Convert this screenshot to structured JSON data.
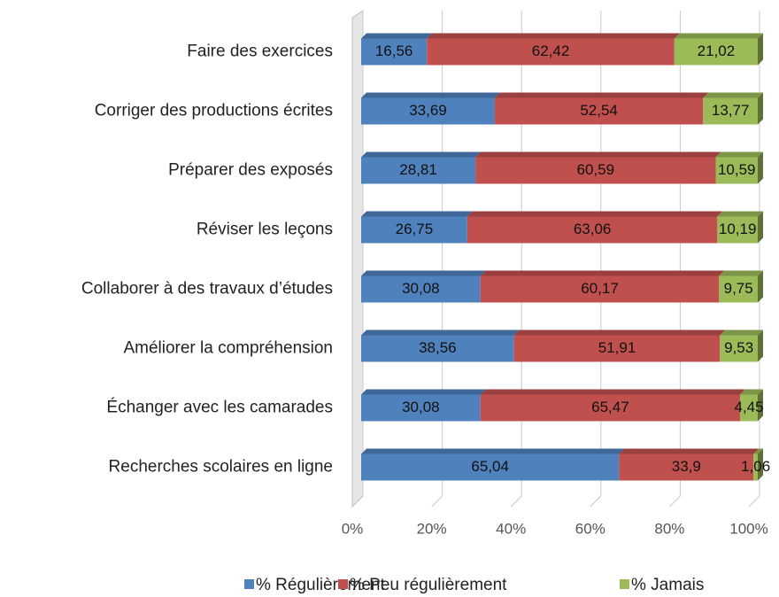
{
  "chart_data": {
    "type": "stacked-bar-horizontal",
    "categories": [
      "Faire des exercices",
      "Corriger des productions écrites",
      "Préparer des exposés",
      "Réviser les leçons ",
      "Collaborer à des travaux d’études",
      "Améliorer la compréhension ",
      "Échanger avec les camarades ",
      "Recherches scolaires en ligne"
    ],
    "series": [
      {
        "name": "% Régulièrement",
        "color": "#4f81bd",
        "values": [
          16.56,
          33.69,
          28.81,
          26.75,
          30.08,
          38.56,
          30.08,
          65.04
        ],
        "value_labels": [
          "16,56",
          "33,69",
          "28,81",
          "26,75",
          "30,08",
          "38,56",
          "30,08",
          "65,04"
        ]
      },
      {
        "name": "% Peu régulièrement",
        "color": "#c0504d",
        "values": [
          62.42,
          52.54,
          60.59,
          63.06,
          60.17,
          51.91,
          65.47,
          33.9
        ],
        "value_labels": [
          "62,42",
          "52,54",
          "60,59",
          "63,06",
          "60,17",
          "51,91",
          "65,47",
          "33,9"
        ]
      },
      {
        "name": "% Jamais",
        "color": "#9bbb59",
        "values": [
          21.02,
          13.77,
          10.59,
          10.19,
          9.75,
          9.53,
          4.45,
          1.06
        ],
        "value_labels": [
          "21,02",
          "13,77",
          "10,59",
          "10,19",
          "9,75",
          "9,53",
          "4,45",
          "1,06"
        ]
      }
    ],
    "xlim": [
      0,
      100
    ],
    "xticks": [
      {
        "value": 0,
        "label": "0%"
      },
      {
        "value": 20,
        "label": "20%"
      },
      {
        "value": 40,
        "label": "40%"
      },
      {
        "value": 60,
        "label": "60%"
      },
      {
        "value": 80,
        "label": "80%"
      },
      {
        "value": 100,
        "label": "100%"
      }
    ],
    "grid": true,
    "legend": "bottom"
  }
}
